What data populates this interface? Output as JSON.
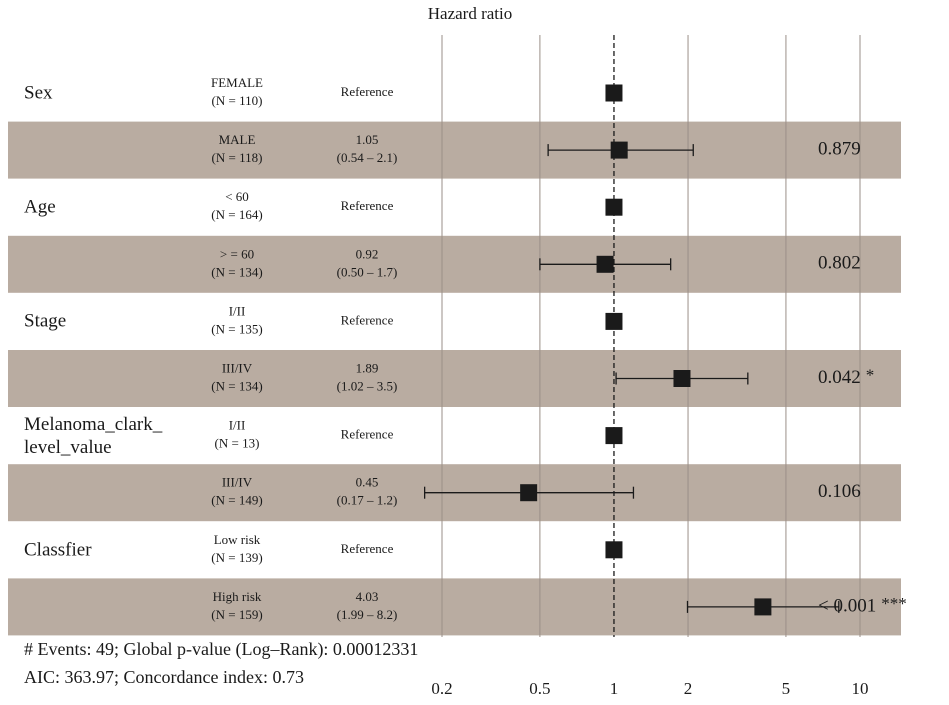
{
  "chart_data": {
    "type": "forest",
    "title": "Hazard ratio",
    "xscale": "log",
    "xlim": [
      0.2,
      10
    ],
    "xticks": [
      0.2,
      0.5,
      1,
      2,
      5,
      10
    ],
    "reference_line": 1,
    "grid": true,
    "color": "#1a1a1a",
    "band_color": "#b9aca1",
    "rows": [
      {
        "variable": "Sex",
        "level": "FEMALE",
        "n": "(N = 110)",
        "value": 1,
        "value_label": "Reference"
      },
      {
        "variable": null,
        "level": "MALE",
        "n": "(N = 118)",
        "value": 1.05,
        "value_label": "1.05",
        "ci": [
          0.54,
          2.1
        ],
        "ci_label": "(0.54 – 2.1)",
        "p_label": "0.879"
      },
      {
        "variable": "Age",
        "level": "< 60",
        "n": "(N = 164)",
        "value": 1,
        "value_label": "Reference"
      },
      {
        "variable": null,
        "level": "> = 60",
        "n": "(N = 134)",
        "value": 0.92,
        "value_label": "0.92",
        "ci": [
          0.5,
          1.7
        ],
        "ci_label": "(0.50 – 1.7)",
        "p_label": "0.802"
      },
      {
        "variable": "Stage",
        "level": "I/II",
        "n": "(N = 135)",
        "value": 1,
        "value_label": "Reference"
      },
      {
        "variable": null,
        "level": "III/IV",
        "n": "(N = 134)",
        "value": 1.89,
        "value_label": "1.89",
        "ci": [
          1.02,
          3.5
        ],
        "ci_label": "(1.02 – 3.5)",
        "p_label": "0.042",
        "signif": "*"
      },
      {
        "variable": "Melanoma_clark_\nlevel_value",
        "level": "I/II",
        "n": "(N = 13)",
        "value": 1,
        "value_label": "Reference"
      },
      {
        "variable": null,
        "level": "III/IV",
        "n": "(N = 149)",
        "value": 0.45,
        "value_label": "0.45",
        "ci": [
          0.17,
          1.2
        ],
        "ci_label": "(0.17 – 1.2)",
        "p_label": "0.106"
      },
      {
        "variable": "Classfier",
        "level": "Low risk",
        "n": "(N = 139)",
        "value": 1,
        "value_label": "Reference"
      },
      {
        "variable": null,
        "level": "High risk",
        "n": "(N = 159)",
        "value": 4.03,
        "value_label": "4.03",
        "ci": [
          1.99,
          8.2
        ],
        "ci_label": "(1.99 – 8.2)",
        "p_label": "< 0.001",
        "signif": "***"
      }
    ],
    "footnotes": [
      "# Events: 49; Global p-value (Log–Rank): 0.00012331",
      "AIC: 363.97; Concordance index: 0.73"
    ]
  }
}
